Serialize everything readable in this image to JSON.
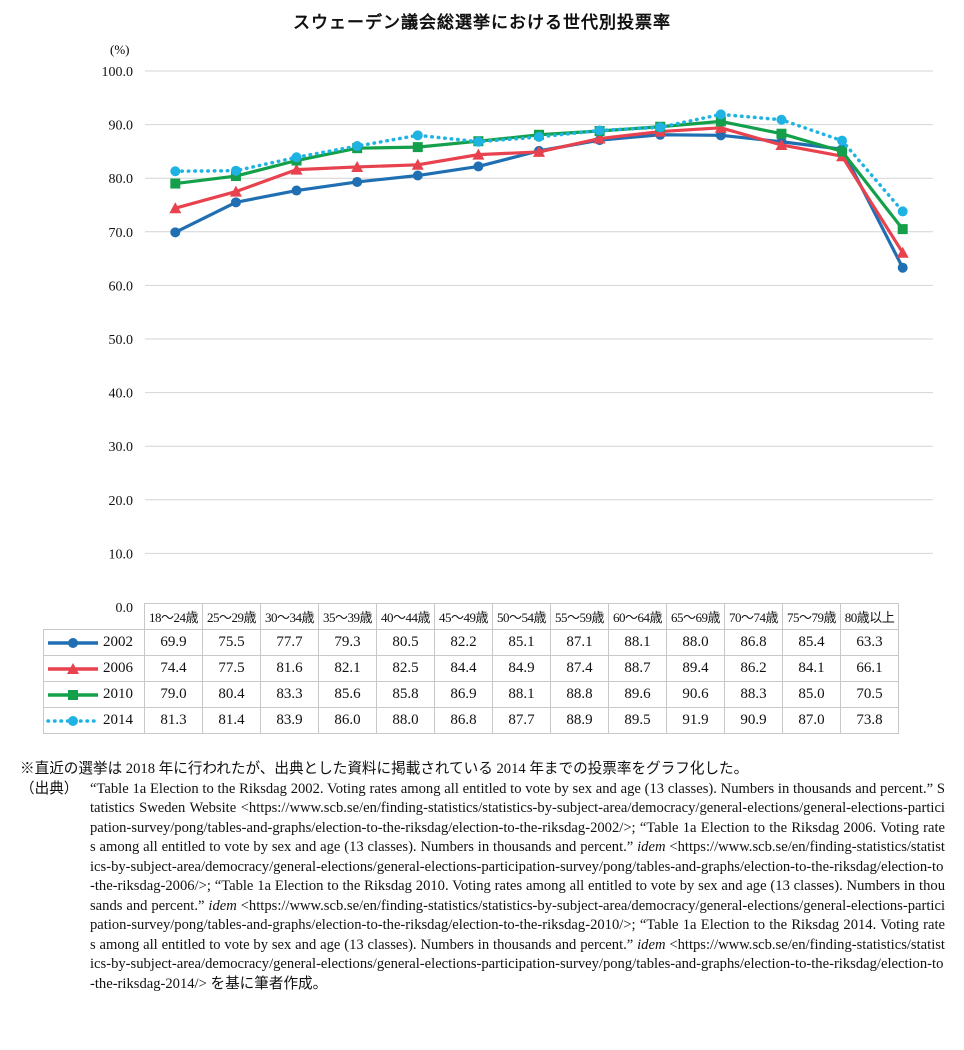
{
  "chart_data": {
    "type": "line",
    "title": "スウェーデン議会総選挙における世代別投票率",
    "ylabel": "(%)",
    "ylim": [
      0,
      100
    ],
    "yticks": [
      "100.0",
      "90.0",
      "80.0",
      "70.0",
      "60.0",
      "50.0",
      "40.0",
      "30.0",
      "20.0",
      "10.0",
      "0.0"
    ],
    "grid": true,
    "legend_placement": "table-left",
    "categories": [
      "18～24歳",
      "25～29歳",
      "30～34歳",
      "35～39歳",
      "40～44歳",
      "45～49歳",
      "50～54歳",
      "55～59歳",
      "60～64歳",
      "65～69歳",
      "70～74歳",
      "75～79歳",
      "80歳以上"
    ],
    "series": [
      {
        "name": "2002",
        "color": "#1f6fb2",
        "marker": "circle",
        "dash": "solid",
        "values": [
          69.9,
          75.5,
          77.7,
          79.3,
          80.5,
          82.2,
          85.1,
          87.1,
          88.1,
          88.0,
          86.8,
          85.4,
          63.3
        ],
        "labels": [
          "69.9",
          "75.5",
          "77.7",
          "79.3",
          "80.5",
          "82.2",
          "85.1",
          "87.1",
          "88.1",
          "88.0",
          "86.8",
          "85.4",
          "63.3"
        ]
      },
      {
        "name": "2006",
        "color": "#e8424f",
        "marker": "triangle",
        "dash": "solid",
        "values": [
          74.4,
          77.5,
          81.6,
          82.1,
          82.5,
          84.4,
          84.9,
          87.4,
          88.7,
          89.4,
          86.2,
          84.1,
          66.1
        ],
        "labels": [
          "74.4",
          "77.5",
          "81.6",
          "82.1",
          "82.5",
          "84.4",
          "84.9",
          "87.4",
          "88.7",
          "89.4",
          "86.2",
          "84.1",
          "66.1"
        ]
      },
      {
        "name": "2010",
        "color": "#14a04b",
        "marker": "square",
        "dash": "solid",
        "values": [
          79.0,
          80.4,
          83.3,
          85.6,
          85.8,
          86.9,
          88.1,
          88.8,
          89.6,
          90.6,
          88.3,
          85.0,
          70.5
        ],
        "labels": [
          "79.0",
          "80.4",
          "83.3",
          "85.6",
          "85.8",
          "86.9",
          "88.1",
          "88.8",
          "89.6",
          "90.6",
          "88.3",
          "85.0",
          "70.5"
        ]
      },
      {
        "name": "2014",
        "color": "#1fb3e4",
        "marker": "circle",
        "dash": "dotted",
        "values": [
          81.3,
          81.4,
          83.9,
          86.0,
          88.0,
          86.8,
          87.7,
          88.9,
          89.5,
          91.9,
          90.9,
          87.0,
          73.8
        ],
        "labels": [
          "81.3",
          "81.4",
          "83.9",
          "86.0",
          "88.0",
          "86.8",
          "87.7",
          "88.9",
          "89.5",
          "91.9",
          "90.9",
          "87.0",
          "73.8"
        ]
      }
    ]
  },
  "notes": {
    "footnote": "※直近の選挙は 2018 年に行われたが、出典とした資料に掲載されている 2014 年までの投票率をグラフ化した。",
    "source_prefix": "（出典）",
    "source_parts": [
      {
        "text": "“Table 1a Election to the Riksdag 2002. Voting rates among all entitled to vote by sex and age (13 classes). Numbers in thousands and percent.” Statistics Sweden Website <https://www.scb.se/en/finding-statistics/statistics-by-subject-area/democracy/general-elections/general-elections-participation-survey/pong/tables-and-graphs/election-to-the-riksdag/election-to-the-riksdag-2002/>; “Table 1a Election to the Riksdag 2006. Voting rates among all entitled to vote by sex and age (13 classes). Numbers in thousands and percent.” ",
        "italic": false
      },
      {
        "text": "idem",
        "italic": true
      },
      {
        "text": " <https://www.scb.se/en/finding-statistics/statistics-by-subject-area/democracy/general-elections/general-elections-participation-survey/pong/tables-and-graphs/election-to-the-riksdag/election-to-the-riksdag-2006/>; “Table 1a Election to the Riksdag 2010. Voting rates among all entitled to vote by sex and age (13 classes). Numbers in thousands and percent.” ",
        "italic": false
      },
      {
        "text": "idem",
        "italic": true
      },
      {
        "text": " <https://www.scb.se/en/finding-statistics/statistics-by-subject-area/democracy/general-elections/general-elections-participation-survey/pong/tables-and-graphs/election-to-the-riksdag/election-to-the-riksdag-2010/>; “Table 1a Election to the Riksdag 2014. Voting rates among all entitled to vote by sex and age (13 classes). Numbers in thousands and percent.” ",
        "italic": false
      },
      {
        "text": "idem",
        "italic": true
      },
      {
        "text": " <https://www.scb.se/en/finding-statistics/statistics-by-subject-area/democracy/general-elections/general-elections-participation-survey/pong/tables-and-graphs/election-to-the-riksdag/election-to-the-riksdag-2014/> を基に筆者作成。",
        "italic": false
      }
    ]
  }
}
